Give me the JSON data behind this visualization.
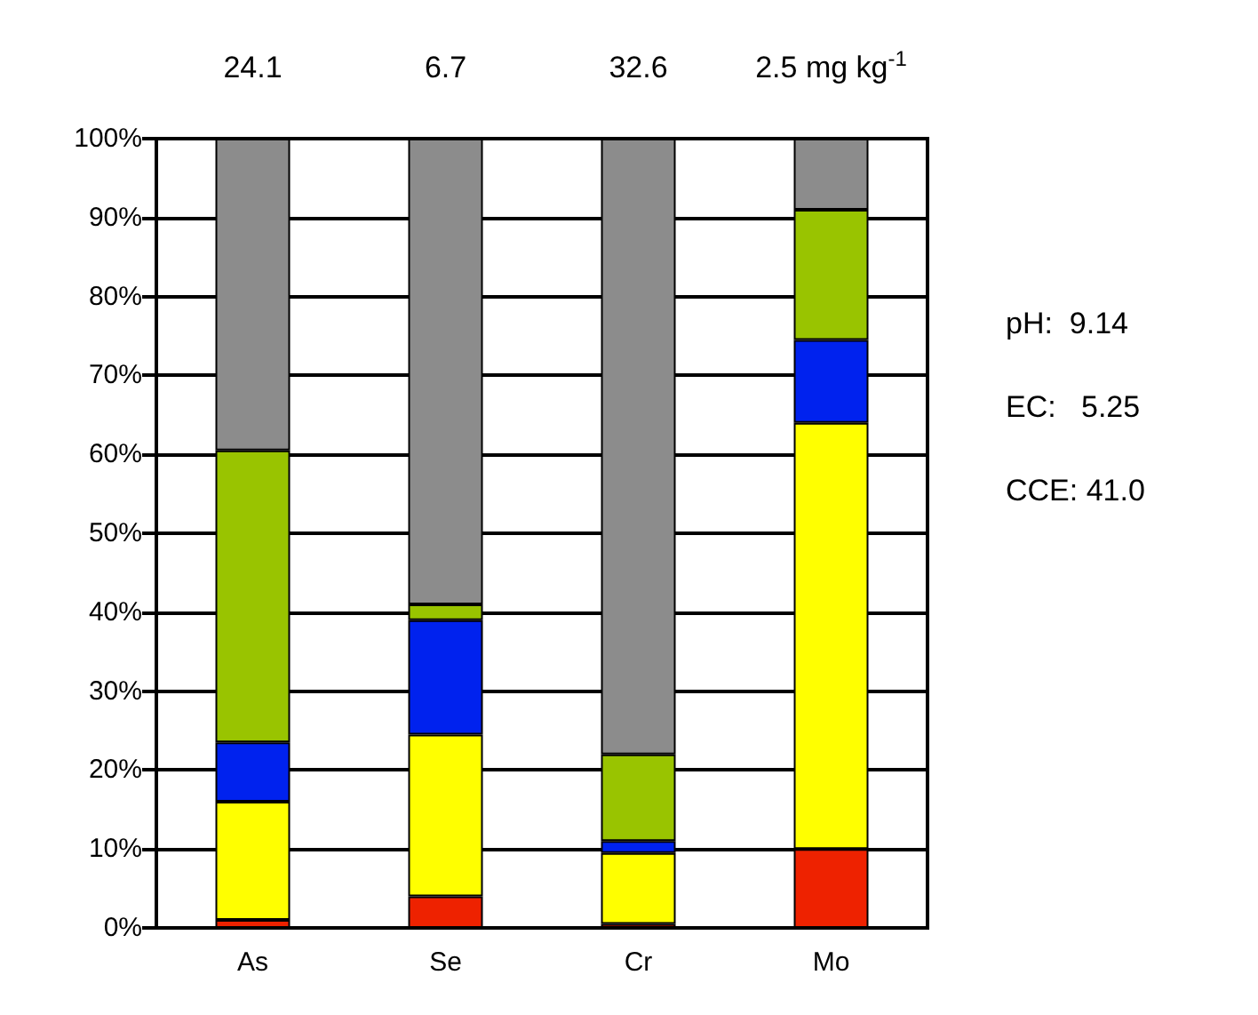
{
  "chart_data": {
    "type": "bar",
    "stacked": true,
    "categories": [
      "As",
      "Se",
      "Cr",
      "Mo"
    ],
    "series": [
      {
        "color": "#ee2200",
        "values": [
          1,
          4,
          0.5,
          10
        ]
      },
      {
        "color": "#ffff00",
        "values": [
          15,
          20.5,
          9,
          54
        ]
      },
      {
        "color": "#0022ee",
        "values": [
          7.5,
          14.5,
          1.5,
          10.5
        ]
      },
      {
        "color": "#99c400",
        "values": [
          37,
          2,
          11,
          16.5
        ]
      },
      {
        "color": "#8c8c8c",
        "values": [
          39.5,
          59,
          78,
          9
        ]
      }
    ],
    "ylim": [
      0,
      100
    ],
    "yticks": [
      {
        "value": 0,
        "label": "0%"
      },
      {
        "value": 10,
        "label": "10%"
      },
      {
        "value": 20,
        "label": "20%"
      },
      {
        "value": 30,
        "label": "30%"
      },
      {
        "value": 40,
        "label": "40%"
      },
      {
        "value": 50,
        "label": "50%"
      },
      {
        "value": 60,
        "label": "60%"
      },
      {
        "value": 70,
        "label": "70%"
      },
      {
        "value": 80,
        "label": "80%"
      },
      {
        "value": 90,
        "label": "90%"
      },
      {
        "value": 100,
        "label": "100%"
      }
    ],
    "grid": "y",
    "annotations": [
      "24.1",
      "6.7",
      "32.6",
      "2.5 mg kg$^{-1}$",
      "pH:  9.14",
      "EC:   5.25",
      "CCE: 41.0"
    ]
  }
}
